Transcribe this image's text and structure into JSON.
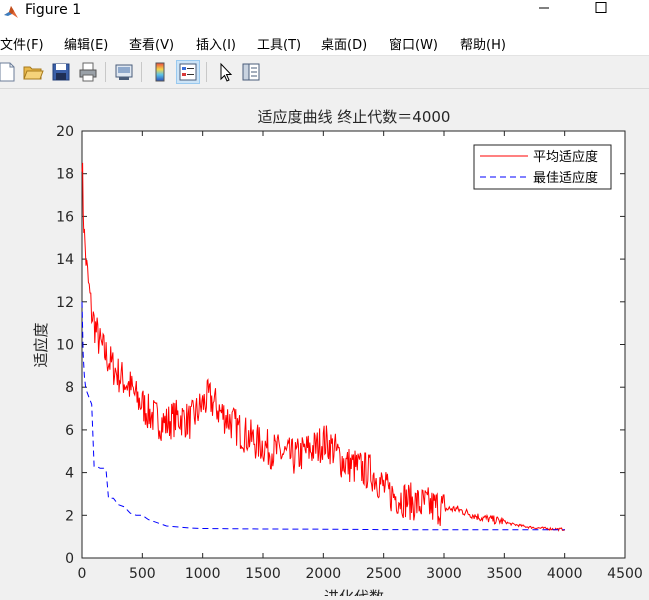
{
  "window": {
    "title": "Figure 1",
    "icon": "matlab-logo-icon",
    "controls": [
      "minimize-icon",
      "maximize-icon"
    ]
  },
  "menu": {
    "items": [
      {
        "label": "文件(F)"
      },
      {
        "label": "编辑(E)"
      },
      {
        "label": "查看(V)"
      },
      {
        "label": "插入(I)"
      },
      {
        "label": "工具(T)"
      },
      {
        "label": "桌面(D)"
      },
      {
        "label": "窗口(W)"
      },
      {
        "label": "帮助(H)"
      }
    ]
  },
  "toolbar": {
    "tools": [
      "new-figure-icon",
      "open-file-icon",
      "save-icon",
      "print-icon",
      "link-plot-icon",
      "colorbar-icon",
      "legend-icon",
      "pointer-icon",
      "property-inspector-icon"
    ],
    "active": "legend-icon"
  },
  "chart_data": {
    "type": "line",
    "title": "适应度曲线  终止代数＝4000",
    "xlabel": "进化代数",
    "ylabel": "适应度",
    "xlim": [
      0,
      4500
    ],
    "ylim": [
      0,
      20
    ],
    "xticks": [
      0,
      500,
      1000,
      1500,
      2000,
      2500,
      3000,
      3500,
      4000,
      4500
    ],
    "yticks": [
      0,
      2,
      4,
      6,
      8,
      10,
      12,
      14,
      16,
      18,
      20
    ],
    "grid": false,
    "legend_position": "top-right",
    "series": [
      {
        "name": "平均适应度",
        "color": "#ff0000",
        "style": "solid",
        "x": [
          0,
          10,
          20,
          40,
          60,
          80,
          100,
          150,
          200,
          250,
          300,
          350,
          400,
          450,
          500,
          550,
          600,
          650,
          700,
          750,
          800,
          850,
          900,
          950,
          1000,
          1050,
          1100,
          1150,
          1200,
          1250,
          1300,
          1350,
          1400,
          1450,
          1500,
          1550,
          1600,
          1650,
          1700,
          1750,
          1800,
          1850,
          1900,
          1950,
          2000,
          2050,
          2100,
          2150,
          2200,
          2250,
          2300,
          2350,
          2400,
          2450,
          2500,
          2550,
          2600,
          2650,
          2700,
          2750,
          2800,
          2850,
          2900,
          2950,
          3000,
          3050,
          3100,
          3150,
          3200,
          3250,
          3300,
          3350,
          3400,
          3450,
          3500,
          3550,
          3600,
          3650,
          3700,
          3750,
          3800,
          3850,
          3900,
          3950,
          4000
        ],
        "y": [
          19,
          16.5,
          15,
          13.5,
          12.5,
          11.5,
          11,
          10,
          9.5,
          9,
          8.6,
          8.3,
          8,
          7.5,
          7.2,
          6.8,
          6.6,
          6.4,
          6.3,
          6.5,
          6.6,
          6.5,
          6.4,
          6.8,
          7.2,
          7.5,
          7.2,
          6.8,
          6.6,
          6.3,
          6.0,
          5.8,
          5.6,
          5.4,
          5.3,
          5.1,
          5.0,
          4.9,
          4.8,
          4.7,
          4.8,
          5.0,
          5.1,
          5.2,
          5.5,
          5.3,
          5.0,
          4.6,
          4.4,
          4.3,
          4.2,
          4.1,
          4.0,
          3.7,
          3.3,
          3.0,
          2.9,
          2.8,
          2.7,
          2.6,
          2.5,
          2.5,
          2.4,
          2.4,
          2.3,
          2.3,
          2.3,
          2.2,
          2.1,
          2.0,
          1.9,
          1.85,
          1.8,
          1.75,
          1.7,
          1.6,
          1.55,
          1.5,
          1.45,
          1.42,
          1.4,
          1.38,
          1.36,
          1.35,
          1.35
        ]
      },
      {
        "name": "最佳适应度",
        "color": "#0000ff",
        "style": "dashed",
        "x": [
          0,
          10,
          20,
          30,
          40,
          60,
          80,
          100,
          120,
          150,
          180,
          200,
          220,
          240,
          260,
          300,
          350,
          400,
          450,
          500,
          550,
          600,
          700,
          800,
          900,
          1000,
          1500,
          2000,
          2500,
          3000,
          3500,
          4000
        ],
        "y": [
          12,
          9.5,
          8.5,
          8,
          7.8,
          7.5,
          7.2,
          4.3,
          4.3,
          4.2,
          4.2,
          4.1,
          2.8,
          2.8,
          2.8,
          2.5,
          2.4,
          2.1,
          2.0,
          2.0,
          1.8,
          1.7,
          1.5,
          1.45,
          1.4,
          1.38,
          1.36,
          1.35,
          1.33,
          1.32,
          1.32,
          1.32
        ]
      }
    ]
  }
}
